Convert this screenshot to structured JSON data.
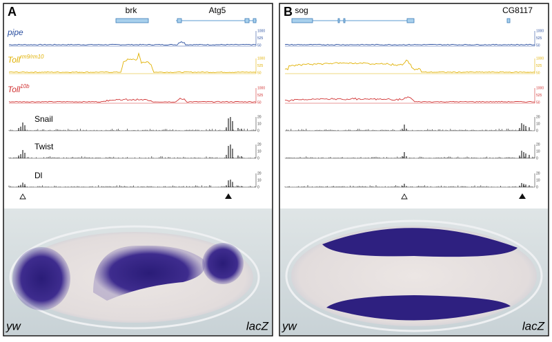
{
  "panels": [
    {
      "letter": "A",
      "genes": [
        "brk",
        "Atg5"
      ],
      "expression_tracks": [
        {
          "name": "pipe",
          "superscript": null,
          "color": "#2a4fa0",
          "scale": [
            "1000",
            "525",
            "50"
          ]
        },
        {
          "name": "Toll",
          "superscript": "rm9/rm10",
          "color": "#e0b000",
          "scale": [
            "1000",
            "525",
            "50"
          ]
        },
        {
          "name": "Toll",
          "superscript": "10b",
          "color": "#d03030",
          "scale": [
            "1000",
            "525",
            "50"
          ]
        }
      ],
      "chip_tracks": [
        {
          "name": "Snail",
          "scale": [
            "20",
            "10",
            "0"
          ]
        },
        {
          "name": "Twist",
          "scale": [
            "20",
            "10",
            "0"
          ]
        },
        {
          "name": "Dl",
          "scale": [
            "20",
            "10",
            "0"
          ]
        }
      ],
      "genotype": "yw",
      "reporter": "lacZ"
    },
    {
      "letter": "B",
      "genes": [
        "sog",
        "CG8117"
      ],
      "expression_tracks": [
        {
          "name": null,
          "superscript": null,
          "color": "#2a4fa0",
          "scale": [
            "1000",
            "525",
            "50"
          ]
        },
        {
          "name": null,
          "superscript": null,
          "color": "#e0b000",
          "scale": [
            "1000",
            "525",
            "50"
          ]
        },
        {
          "name": null,
          "superscript": null,
          "color": "#d03030",
          "scale": [
            "1000",
            "525",
            "50"
          ]
        }
      ],
      "chip_tracks": [
        {
          "name": null,
          "scale": [
            "20",
            "10",
            "0"
          ]
        },
        {
          "name": null,
          "scale": [
            "20",
            "10",
            "0"
          ]
        },
        {
          "name": null,
          "scale": [
            "20",
            "10",
            "0"
          ]
        }
      ],
      "genotype": "yw",
      "reporter": "lacZ"
    }
  ]
}
